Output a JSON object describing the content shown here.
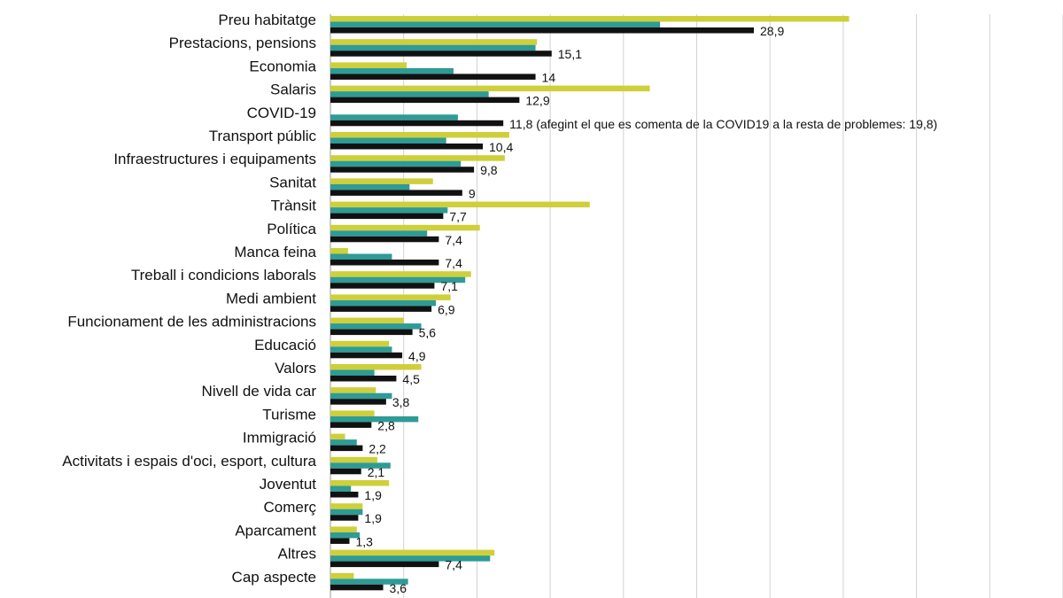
{
  "chart_data": {
    "type": "bar",
    "orientation": "horizontal",
    "categories": [
      "Preu habitatge",
      "Prestacions, pensions",
      "Economia",
      "Salaris",
      "COVID-19",
      "Transport públic",
      "Infraestructures i equipaments",
      "Sanitat",
      "Trànsit",
      "Política",
      "Manca feina",
      "Treball i condicions laborals",
      "Medi ambient",
      "Funcionament de les administracions",
      "Educació",
      "Valors",
      "Nivell de vida car",
      "Turisme",
      "Immigració",
      "Activitats i espais d'oci, esport, cultura",
      "Joventut",
      "Comerç",
      "Aparcament",
      "Altres",
      "Cap aspecte"
    ],
    "series": [
      {
        "color": "#cfcf3a",
        "values": [
          35.4,
          14.1,
          5.2,
          21.8,
          0,
          12.2,
          11.9,
          7.0,
          17.7,
          10.2,
          1.2,
          9.6,
          8.2,
          5.0,
          4.0,
          6.2,
          3.1,
          3.0,
          1.0,
          3.2,
          4.0,
          2.2,
          1.8,
          11.2,
          1.6
        ]
      },
      {
        "color": "#2e9b96",
        "values": [
          22.5,
          14.0,
          8.4,
          10.8,
          8.7,
          7.9,
          8.9,
          5.4,
          8.0,
          6.6,
          4.2,
          9.2,
          7.2,
          6.2,
          4.2,
          3.0,
          4.2,
          6.0,
          1.8,
          4.1,
          1.4,
          2.2,
          2.0,
          10.9,
          5.3
        ]
      },
      {
        "color": "#111111",
        "values": [
          28.9,
          15.1,
          14,
          12.9,
          11.8,
          10.4,
          9.8,
          9,
          7.7,
          7.4,
          7.4,
          7.1,
          6.9,
          5.6,
          4.9,
          4.5,
          3.8,
          2.8,
          2.2,
          2.1,
          1.9,
          1.9,
          1.3,
          7.4,
          3.6
        ],
        "labels": [
          "28,9",
          "15,1",
          "14",
          "12,9",
          "11,8 (afegint el que es comenta de la COVID19 a la resta de problemes: 19,8)",
          "10,4",
          "9,8",
          "9",
          "7,7",
          "7,4",
          "7,4",
          "7,1",
          "6,9",
          "5,6",
          "4,9",
          "4,5",
          "3,8",
          "2,8",
          "2,2",
          "2,1",
          "1,9",
          "1,9",
          "1,3",
          "7,4",
          "3,6"
        ]
      }
    ],
    "xlim": [
      0,
      50
    ],
    "x_gridline_step": 5,
    "grid": "vertical",
    "legend": "none"
  }
}
